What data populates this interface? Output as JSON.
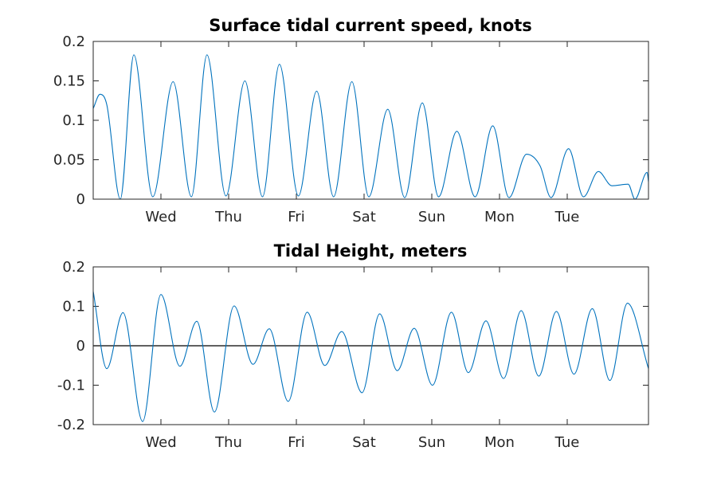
{
  "chart_data": [
    {
      "type": "line",
      "title": "Surface tidal current speed, knots",
      "xlabel": "",
      "ylabel": "",
      "x_range_days": [
        0,
        8.2
      ],
      "ylim": [
        0,
        0.2
      ],
      "yticks": [
        0,
        0.05,
        0.1,
        0.15,
        0.2
      ],
      "ytick_labels": [
        "0",
        "0.05",
        "0.1",
        "0.15",
        "0.2"
      ],
      "xticks": [
        1.0,
        2.0,
        3.0,
        4.0,
        5.0,
        6.0,
        7.0
      ],
      "xtick_labels": [
        "Wed",
        "Thu",
        "Fri",
        "Sat",
        "Sun",
        "Mon",
        "Tue"
      ],
      "grid": false,
      "series": [
        {
          "color": "#0072BD",
          "points": [
            [
              0.0,
              0.115
            ],
            [
              0.1,
              0.133
            ],
            [
              0.2,
              0.12
            ],
            [
              0.4,
              0.0
            ],
            [
              0.6,
              0.183
            ],
            [
              0.88,
              0.003
            ],
            [
              1.18,
              0.149
            ],
            [
              1.45,
              0.003
            ],
            [
              1.68,
              0.183
            ],
            [
              1.96,
              0.004
            ],
            [
              2.24,
              0.15
            ],
            [
              2.5,
              0.003
            ],
            [
              2.75,
              0.171
            ],
            [
              3.03,
              0.004
            ],
            [
              3.3,
              0.137
            ],
            [
              3.55,
              0.003
            ],
            [
              3.82,
              0.149
            ],
            [
              4.07,
              0.003
            ],
            [
              4.35,
              0.114
            ],
            [
              4.6,
              0.002
            ],
            [
              4.86,
              0.122
            ],
            [
              5.1,
              0.003
            ],
            [
              5.37,
              0.086
            ],
            [
              5.64,
              0.003
            ],
            [
              5.9,
              0.093
            ],
            [
              6.14,
              0.002
            ],
            [
              6.4,
              0.057
            ],
            [
              6.6,
              0.042
            ],
            [
              6.76,
              0.002
            ],
            [
              7.02,
              0.064
            ],
            [
              7.24,
              0.003
            ],
            [
              7.46,
              0.035
            ],
            [
              7.66,
              0.017
            ],
            [
              7.9,
              0.019
            ],
            [
              8.0,
              0.0
            ],
            [
              8.18,
              0.034
            ],
            [
              8.2,
              0.022
            ]
          ]
        }
      ]
    },
    {
      "type": "line",
      "title": "Tidal Height, meters",
      "xlabel": "",
      "ylabel": "",
      "x_range_days": [
        0,
        8.2
      ],
      "ylim": [
        -0.2,
        0.2
      ],
      "yticks": [
        -0.2,
        -0.1,
        0,
        0.1,
        0.2
      ],
      "ytick_labels": [
        "-0.2",
        "-0.1",
        "0",
        "0.1",
        "0.2"
      ],
      "xticks": [
        1.0,
        2.0,
        3.0,
        4.0,
        5.0,
        6.0,
        7.0
      ],
      "xtick_labels": [
        "Wed",
        "Thu",
        "Fri",
        "Sat",
        "Sun",
        "Mon",
        "Tue"
      ],
      "grid": false,
      "reference_line_y": 0,
      "series": [
        {
          "color": "#0072BD",
          "points": [
            [
              0.0,
              0.138
            ],
            [
              0.2,
              -0.058
            ],
            [
              0.44,
              0.084
            ],
            [
              0.73,
              -0.192
            ],
            [
              1.0,
              0.13
            ],
            [
              1.28,
              -0.052
            ],
            [
              1.53,
              0.062
            ],
            [
              1.79,
              -0.168
            ],
            [
              2.08,
              0.101
            ],
            [
              2.36,
              -0.047
            ],
            [
              2.6,
              0.043
            ],
            [
              2.88,
              -0.141
            ],
            [
              3.16,
              0.085
            ],
            [
              3.42,
              -0.05
            ],
            [
              3.67,
              0.036
            ],
            [
              3.97,
              -0.119
            ],
            [
              4.23,
              0.081
            ],
            [
              4.49,
              -0.063
            ],
            [
              4.74,
              0.044
            ],
            [
              5.01,
              -0.1
            ],
            [
              5.29,
              0.085
            ],
            [
              5.54,
              -0.068
            ],
            [
              5.8,
              0.063
            ],
            [
              6.06,
              -0.083
            ],
            [
              6.32,
              0.089
            ],
            [
              6.58,
              -0.077
            ],
            [
              6.84,
              0.087
            ],
            [
              7.1,
              -0.072
            ],
            [
              7.37,
              0.094
            ],
            [
              7.63,
              -0.088
            ],
            [
              7.89,
              0.108
            ],
            [
              8.2,
              -0.058
            ]
          ]
        }
      ]
    }
  ]
}
